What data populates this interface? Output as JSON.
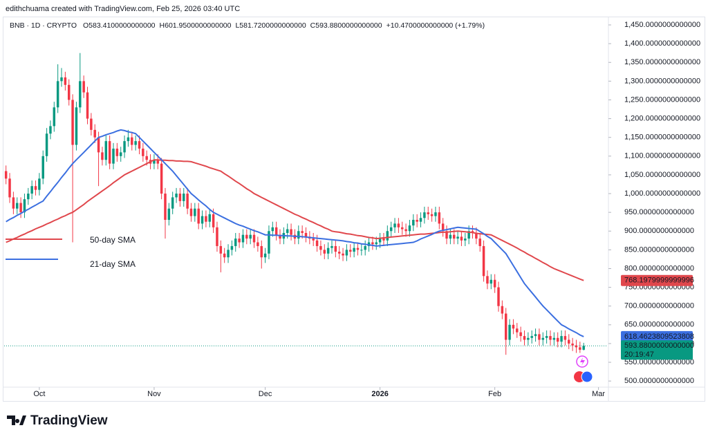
{
  "attribution": "edithchuama created with TradingView.com, Feb 25, 2026 03:40 UTC",
  "brand": "TradingView",
  "chart_data": {
    "type": "candlestick",
    "symbol": "BNB · 1D · CRYPTO",
    "ohlc": [
      "O583.4100000000000",
      "H601.9500000000000",
      "L581.7200000000000",
      "C593.8800000000000",
      "+10.4700000000000 (+1.79%)"
    ],
    "up_color": "#089981",
    "down_color": "#f23645",
    "candles": [
      [
        1060,
        1075,
        1025,
        1040
      ],
      [
        1040,
        1055,
        975,
        990
      ],
      [
        990,
        1005,
        945,
        960
      ],
      [
        960,
        990,
        945,
        975
      ],
      [
        975,
        990,
        935,
        950
      ],
      [
        950,
        1000,
        935,
        985
      ],
      [
        985,
        1015,
        970,
        1000
      ],
      [
        1000,
        1035,
        985,
        1020
      ],
      [
        1020,
        1035,
        995,
        1010
      ],
      [
        1010,
        1055,
        995,
        1040
      ],
      [
        1040,
        1115,
        1025,
        1100
      ],
      [
        1100,
        1175,
        1085,
        1160
      ],
      [
        1160,
        1195,
        1145,
        1180
      ],
      [
        1180,
        1245,
        1165,
        1230
      ],
      [
        1230,
        1345,
        1215,
        1300
      ],
      [
        1300,
        1335,
        1285,
        1310
      ],
      [
        1310,
        1325,
        1275,
        1290
      ],
      [
        1290,
        1305,
        1235,
        1250
      ],
      [
        1250,
        1265,
        870,
        1130
      ],
      [
        1130,
        1245,
        1115,
        1230
      ],
      [
        1230,
        1375,
        1215,
        1300
      ],
      [
        1300,
        1315,
        1255,
        1270
      ],
      [
        1270,
        1285,
        1185,
        1200
      ],
      [
        1200,
        1215,
        1155,
        1170
      ],
      [
        1170,
        1185,
        1135,
        1150
      ],
      [
        1150,
        1165,
        1020,
        1110
      ],
      [
        1110,
        1125,
        1075,
        1090
      ],
      [
        1090,
        1155,
        1075,
        1140
      ],
      [
        1140,
        1155,
        1065,
        1080
      ],
      [
        1080,
        1135,
        1065,
        1120
      ],
      [
        1120,
        1135,
        1085,
        1100
      ],
      [
        1100,
        1125,
        1085,
        1110
      ],
      [
        1110,
        1155,
        1095,
        1140
      ],
      [
        1140,
        1170,
        1125,
        1150
      ],
      [
        1150,
        1165,
        1115,
        1130
      ],
      [
        1130,
        1155,
        1115,
        1140
      ],
      [
        1140,
        1155,
        1105,
        1120
      ],
      [
        1120,
        1135,
        1085,
        1100
      ],
      [
        1100,
        1115,
        1075,
        1090
      ],
      [
        1090,
        1105,
        1065,
        1080
      ],
      [
        1080,
        1105,
        1065,
        1090
      ],
      [
        1090,
        1105,
        1065,
        1080
      ],
      [
        1080,
        1095,
        985,
        1000
      ],
      [
        1000,
        1015,
        880,
        930
      ],
      [
        930,
        975,
        915,
        960
      ],
      [
        960,
        1005,
        945,
        990
      ],
      [
        990,
        1015,
        975,
        1000
      ],
      [
        1000,
        1015,
        965,
        980
      ],
      [
        980,
        1015,
        965,
        1000
      ],
      [
        1000,
        1015,
        945,
        960
      ],
      [
        960,
        975,
        925,
        940
      ],
      [
        940,
        975,
        925,
        960
      ],
      [
        960,
        975,
        905,
        920
      ],
      [
        920,
        955,
        905,
        940
      ],
      [
        940,
        955,
        910,
        925
      ],
      [
        925,
        960,
        910,
        945
      ],
      [
        945,
        960,
        895,
        910
      ],
      [
        910,
        925,
        845,
        860
      ],
      [
        860,
        875,
        790,
        840
      ],
      [
        840,
        855,
        815,
        830
      ],
      [
        830,
        865,
        815,
        850
      ],
      [
        850,
        875,
        835,
        860
      ],
      [
        860,
        895,
        845,
        880
      ],
      [
        880,
        895,
        855,
        870
      ],
      [
        870,
        905,
        855,
        890
      ],
      [
        890,
        905,
        865,
        880
      ],
      [
        880,
        905,
        865,
        890
      ],
      [
        890,
        905,
        855,
        870
      ],
      [
        870,
        885,
        845,
        860
      ],
      [
        860,
        875,
        800,
        830
      ],
      [
        830,
        855,
        815,
        840
      ],
      [
        840,
        915,
        825,
        900
      ],
      [
        900,
        925,
        885,
        910
      ],
      [
        910,
        925,
        875,
        890
      ],
      [
        890,
        905,
        865,
        880
      ],
      [
        880,
        910,
        865,
        895
      ],
      [
        895,
        920,
        880,
        905
      ],
      [
        905,
        920,
        875,
        890
      ],
      [
        890,
        905,
        865,
        880
      ],
      [
        880,
        915,
        865,
        900
      ],
      [
        900,
        915,
        880,
        895
      ],
      [
        895,
        910,
        870,
        885
      ],
      [
        885,
        900,
        865,
        880
      ],
      [
        880,
        895,
        860,
        875
      ],
      [
        875,
        890,
        845,
        860
      ],
      [
        860,
        875,
        835,
        850
      ],
      [
        850,
        865,
        825,
        840
      ],
      [
        840,
        870,
        825,
        855
      ],
      [
        855,
        875,
        840,
        860
      ],
      [
        860,
        875,
        830,
        845
      ],
      [
        845,
        860,
        825,
        840
      ],
      [
        840,
        855,
        820,
        835
      ],
      [
        835,
        865,
        820,
        850
      ],
      [
        850,
        865,
        830,
        845
      ],
      [
        845,
        870,
        830,
        855
      ],
      [
        855,
        870,
        835,
        850
      ],
      [
        850,
        865,
        835,
        850
      ],
      [
        850,
        875,
        835,
        860
      ],
      [
        860,
        885,
        845,
        870
      ],
      [
        870,
        885,
        850,
        865
      ],
      [
        865,
        885,
        850,
        870
      ],
      [
        870,
        895,
        855,
        880
      ],
      [
        880,
        895,
        860,
        875
      ],
      [
        875,
        915,
        860,
        900
      ],
      [
        900,
        925,
        885,
        910
      ],
      [
        910,
        935,
        895,
        920
      ],
      [
        920,
        935,
        895,
        910
      ],
      [
        910,
        925,
        890,
        905
      ],
      [
        905,
        920,
        885,
        900
      ],
      [
        900,
        930,
        885,
        915
      ],
      [
        915,
        945,
        900,
        930
      ],
      [
        930,
        945,
        910,
        925
      ],
      [
        925,
        950,
        910,
        935
      ],
      [
        935,
        965,
        920,
        950
      ],
      [
        950,
        965,
        930,
        945
      ],
      [
        945,
        960,
        925,
        940
      ],
      [
        940,
        965,
        925,
        950
      ],
      [
        950,
        965,
        905,
        920
      ],
      [
        920,
        935,
        885,
        900
      ],
      [
        900,
        915,
        865,
        880
      ],
      [
        880,
        905,
        865,
        890
      ],
      [
        890,
        905,
        865,
        880
      ],
      [
        880,
        900,
        865,
        885
      ],
      [
        885,
        900,
        860,
        875
      ],
      [
        875,
        895,
        860,
        880
      ],
      [
        880,
        915,
        865,
        900
      ],
      [
        900,
        915,
        880,
        895
      ],
      [
        895,
        910,
        865,
        880
      ],
      [
        880,
        895,
        845,
        860
      ],
      [
        860,
        875,
        765,
        780
      ],
      [
        780,
        795,
        745,
        760
      ],
      [
        760,
        785,
        745,
        770
      ],
      [
        770,
        785,
        735,
        750
      ],
      [
        750,
        765,
        685,
        700
      ],
      [
        700,
        715,
        665,
        680
      ],
      [
        680,
        695,
        570,
        610
      ],
      [
        610,
        665,
        595,
        650
      ],
      [
        650,
        665,
        625,
        640
      ],
      [
        640,
        655,
        615,
        630
      ],
      [
        630,
        645,
        605,
        620
      ],
      [
        620,
        635,
        595,
        610
      ],
      [
        610,
        630,
        595,
        615
      ],
      [
        615,
        635,
        600,
        620
      ],
      [
        620,
        640,
        605,
        625
      ],
      [
        625,
        640,
        595,
        610
      ],
      [
        610,
        630,
        595,
        615
      ],
      [
        615,
        635,
        600,
        620
      ],
      [
        620,
        635,
        595,
        610
      ],
      [
        610,
        630,
        595,
        615
      ],
      [
        615,
        630,
        590,
        605
      ],
      [
        605,
        635,
        590,
        620
      ],
      [
        620,
        635,
        595,
        610
      ],
      [
        610,
        625,
        585,
        600
      ],
      [
        600,
        615,
        580,
        595
      ],
      [
        595,
        610,
        575,
        590
      ],
      [
        590,
        605,
        575,
        583.41
      ],
      [
        583.41,
        601.95,
        581.72,
        593.88
      ]
    ],
    "series": [
      {
        "name": "50-day SMA",
        "color": "#e0474c",
        "values": [
          870,
          874,
          879,
          883,
          888,
          892,
          897,
          901,
          906,
          910,
          914,
          919,
          923,
          928,
          932,
          937,
          941,
          946,
          950,
          957,
          964,
          971,
          979,
          986,
          993,
          1000,
          1007,
          1014,
          1021,
          1029,
          1036,
          1043,
          1050,
          1055,
          1060,
          1065,
          1070,
          1075,
          1080,
          1085,
          1090,
          1090,
          1089,
          1089,
          1088,
          1088,
          1087,
          1087,
          1086,
          1086,
          1085,
          1082,
          1079,
          1076,
          1073,
          1069,
          1066,
          1063,
          1060,
          1053,
          1047,
          1040,
          1033,
          1027,
          1020,
          1013,
          1007,
          1000,
          995,
          990,
          985,
          980,
          975,
          970,
          965,
          960,
          955,
          950,
          945,
          941,
          936,
          932,
          927,
          923,
          918,
          914,
          909,
          905,
          900,
          898,
          897,
          895,
          893,
          892,
          890,
          888,
          887,
          885,
          883,
          882,
          880,
          881,
          882,
          883,
          884,
          885,
          886,
          887,
          888,
          889,
          890,
          891,
          892,
          892,
          893,
          894,
          895,
          896,
          897,
          897,
          898,
          899,
          900,
          899,
          898,
          897,
          896,
          894,
          893,
          892,
          891,
          890,
          885,
          880,
          875,
          870,
          865,
          860,
          855,
          849,
          844,
          838,
          833,
          827,
          822,
          816,
          811,
          805,
          800,
          796,
          792,
          788,
          784,
          780,
          776,
          772,
          768.1979999999996
        ]
      },
      {
        "name": "21-day SMA",
        "color": "#3b6fe0",
        "values": [
          925,
          931,
          936,
          942,
          947,
          953,
          958,
          964,
          969,
          975,
          980,
          993,
          1005,
          1018,
          1030,
          1043,
          1055,
          1068,
          1080,
          1090,
          1100,
          1110,
          1120,
          1130,
          1140,
          1150,
          1153,
          1157,
          1160,
          1163,
          1167,
          1170,
          1168,
          1165,
          1163,
          1160,
          1150,
          1140,
          1130,
          1120,
          1110,
          1100,
          1090,
          1080,
          1070,
          1060,
          1048,
          1036,
          1024,
          1012,
          1000,
          992,
          983,
          975,
          967,
          958,
          950,
          945,
          940,
          935,
          930,
          925,
          920,
          916,
          913,
          909,
          905,
          901,
          898,
          894,
          890,
          890,
          889,
          889,
          888,
          888,
          887,
          887,
          886,
          886,
          885,
          884,
          883,
          882,
          881,
          880,
          879,
          878,
          877,
          876,
          875,
          874,
          872,
          871,
          869,
          868,
          866,
          865,
          863,
          862,
          860,
          861,
          862,
          863,
          864,
          865,
          866,
          867,
          868,
          869,
          870,
          874,
          879,
          883,
          887,
          891,
          896,
          900,
          902,
          904,
          906,
          908,
          910,
          909,
          908,
          907,
          906,
          905,
          899,
          893,
          886,
          880,
          870,
          860,
          850,
          840,
          824,
          808,
          792,
          776,
          760,
          748,
          736,
          724,
          712,
          700,
          690,
          680,
          670,
          660,
          650,
          645,
          639,
          634,
          629,
          623,
          618.4623809523808
        ]
      }
    ],
    "last_price": {
      "value": 593.88,
      "label": "593.8800000000000"
    },
    "countdown": "20:19:47",
    "xlim": [
      -0.5,
      162.5
    ],
    "xticks": [
      {
        "value": 9,
        "label": "Oct"
      },
      {
        "value": 40,
        "label": "Nov"
      },
      {
        "value": 70,
        "label": "Dec"
      },
      {
        "value": 101,
        "label": "2026"
      },
      {
        "value": 132,
        "label": "Feb"
      },
      {
        "value": 160,
        "label": "Mar"
      }
    ],
    "ylim": [
      480,
      1498
    ],
    "yticks": [
      {
        "value": 500,
        "label": "500.0000000000000"
      },
      {
        "value": 550,
        "label": "550.0000000000000"
      },
      {
        "value": 600,
        "label": "600.0000000000000"
      },
      {
        "value": 650,
        "label": "650.0000000000000"
      },
      {
        "value": 700,
        "label": "700.0000000000000"
      },
      {
        "value": 750,
        "label": "750.0000000000000"
      },
      {
        "value": 800,
        "label": "800.0000000000000"
      },
      {
        "value": 850,
        "label": "850.0000000000000"
      },
      {
        "value": 900,
        "label": "900.0000000000000"
      },
      {
        "value": 950,
        "label": "950.0000000000000"
      },
      {
        "value": 1000,
        "label": "1,000.0000000000000"
      },
      {
        "value": 1050,
        "label": "1,050.0000000000000"
      },
      {
        "value": 1100,
        "label": "1,100.0000000000000"
      },
      {
        "value": 1150,
        "label": "1,150.0000000000000"
      },
      {
        "value": 1200,
        "label": "1,200.0000000000000"
      },
      {
        "value": 1250,
        "label": "1,250.0000000000000"
      },
      {
        "value": 1300,
        "label": "1,300.0000000000000"
      },
      {
        "value": 1350,
        "label": "1,350.0000000000000"
      },
      {
        "value": 1400,
        "label": "1,400.0000000000000"
      },
      {
        "value": 1450,
        "label": "1,450.0000000000000"
      }
    ]
  }
}
